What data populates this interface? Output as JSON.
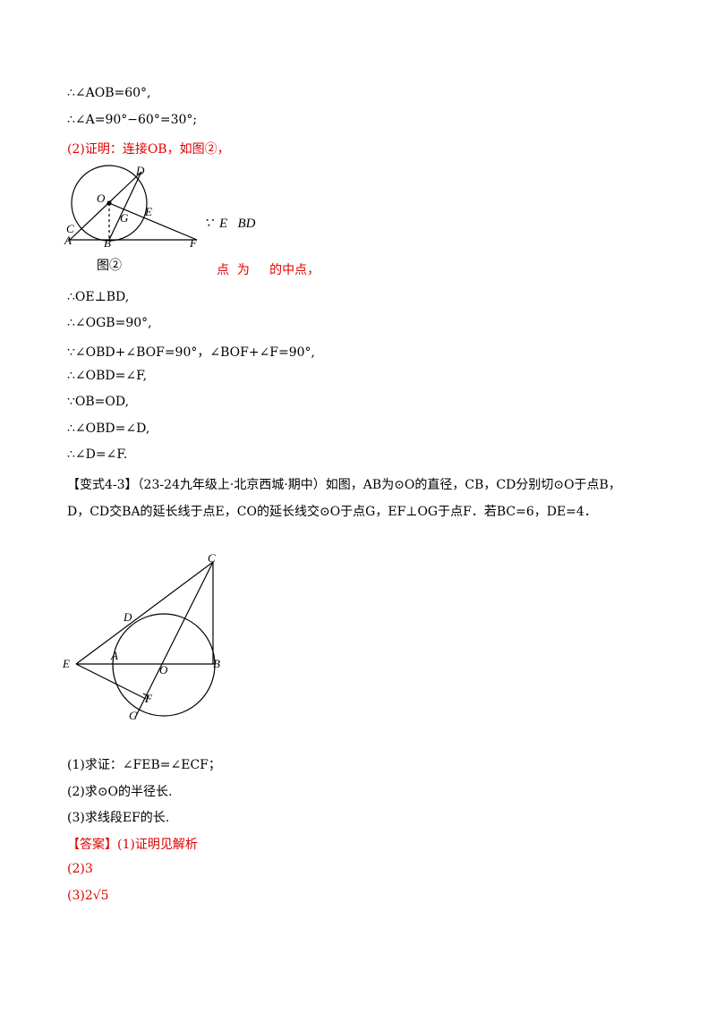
{
  "lines_top": [
    "∴∠AOB=60°,",
    "∴∠A=90°−60°=30°;",
    "(2)证明：连接OB，如图②，"
  ],
  "figure1": {
    "labels": [
      "D",
      "O",
      "G",
      "E",
      "C",
      "A",
      "B",
      "F"
    ],
    "caption": "图②"
  },
  "side_note": {
    "part1": "∵  E   BD",
    "part2": "点  为     的中点，"
  },
  "lines_proof": [
    "∴OE⊥BD,",
    "∴∠OGB=90°,",
    "∵∠OBD+∠BOF=90°，∠BOF+∠F=90°,",
    "∴∠OBD=∠F,",
    "∵OB=OD,",
    "∴∠OBD=∠D,",
    "∴∠D=∠F."
  ],
  "problem": {
    "tag": "【变式4-3】",
    "lines": [
      "（23-24九年级上·北京西城·期中）如图，AB为⊙O的直径，CB，CD分别切⊙O于点B，",
      "D，CD交BA的延长线于点E，CO的延长线交⊙O于点G，EF⊥OG于点F．若BC=6，DE=4．"
    ]
  },
  "figure2": {
    "labels": [
      "C",
      "D",
      "E",
      "A",
      "O",
      "B",
      "F",
      "G"
    ]
  },
  "questions": [
    "(1)求证：∠FEB=∠ECF；",
    "(2)求⊙O的半径长.",
    "(3)求线段EF的长."
  ],
  "answer": {
    "tag": "【答案】",
    "items": [
      "(1)证明见解析",
      "(2)3",
      "(3)2√5"
    ]
  }
}
